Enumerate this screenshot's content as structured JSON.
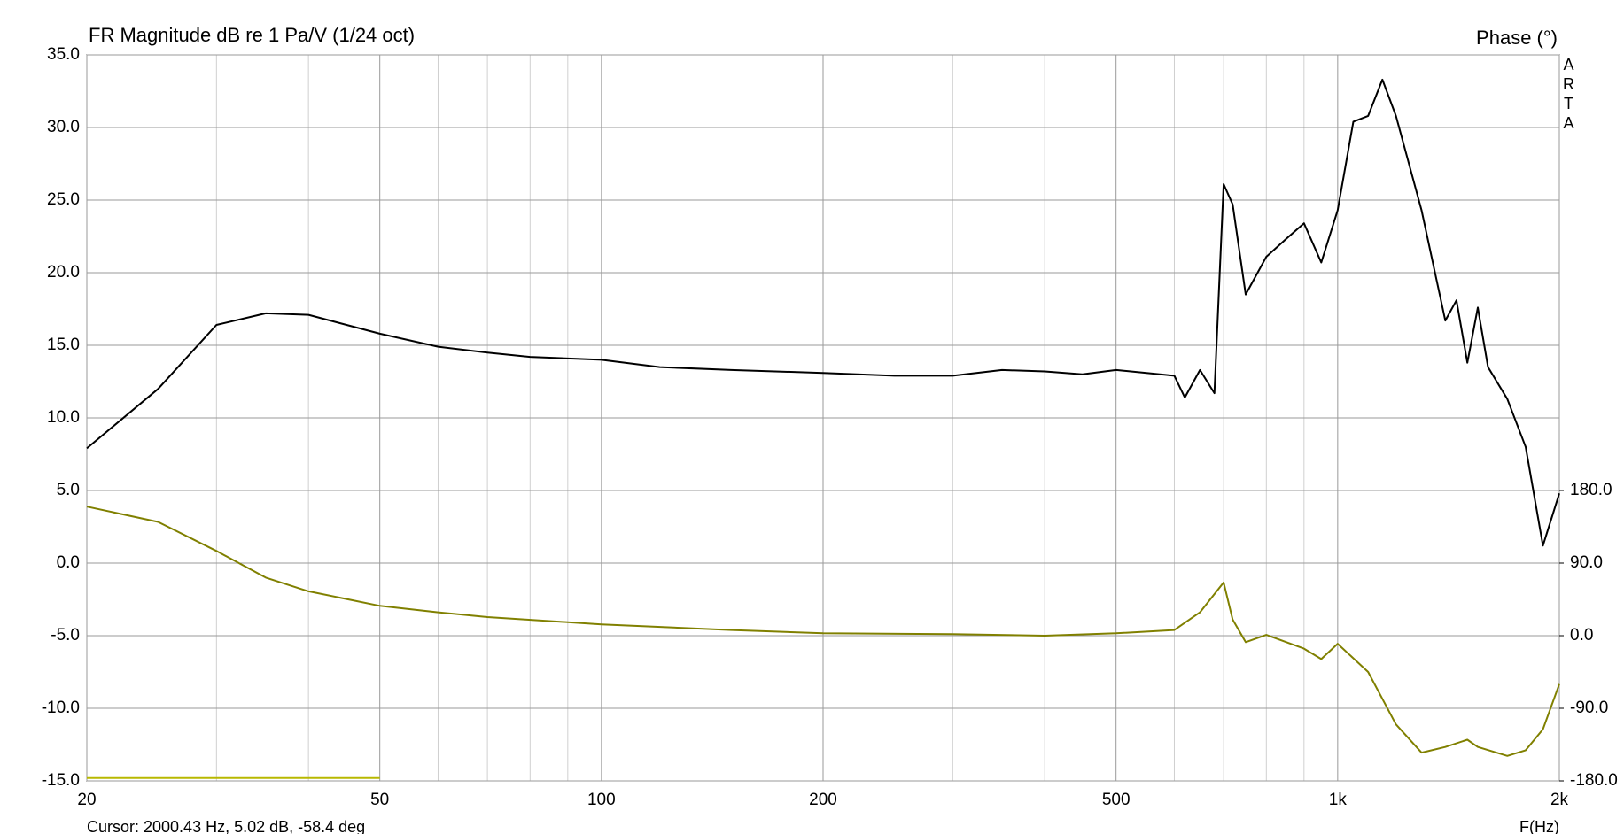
{
  "chart_data": {
    "type": "line",
    "title": "FR Magnitude dB re 1 Pa/V (1/24 oct)",
    "y2_label": "Phase (°)",
    "watermark": "ARTA",
    "x_label": "F(Hz)",
    "cursor_text": "Cursor: 2000.43 Hz, 5.02 dB, -58.4 deg",
    "log_x": true,
    "xlim": [
      20,
      2000
    ],
    "xticks": [
      20,
      50,
      100,
      200,
      500,
      {
        "value": 1000,
        "label": "1k"
      },
      {
        "value": 2000,
        "label": "2k"
      }
    ],
    "x_minor_grid": [
      30,
      40,
      60,
      70,
      80,
      90,
      300,
      400,
      600,
      700,
      800,
      900
    ],
    "ylim": [
      -15,
      35
    ],
    "yticks": [
      {
        "value": -15,
        "label": "-15.0"
      },
      {
        "value": -10,
        "label": "-10.0"
      },
      {
        "value": -5,
        "label": "-5.0"
      },
      {
        "value": 0,
        "label": "0.0"
      },
      {
        "value": 5,
        "label": "5.0"
      },
      {
        "value": 10,
        "label": "10.0"
      },
      {
        "value": 15,
        "label": "15.0"
      },
      {
        "value": 20,
        "label": "20.0"
      },
      {
        "value": 25,
        "label": "25.0"
      },
      {
        "value": 30,
        "label": "30.0"
      },
      {
        "value": 35,
        "label": "35.0"
      }
    ],
    "y2lim": [
      -180,
      720
    ],
    "y2ticks": [
      {
        "value": -180,
        "label": "-180.0"
      },
      {
        "value": -90,
        "label": "-90.0"
      },
      {
        "value": 0,
        "label": "0.0"
      },
      {
        "value": 90,
        "label": "90.0"
      },
      {
        "value": 180,
        "label": "180.0"
      }
    ],
    "grid": true,
    "series": [
      {
        "color": "#000000",
        "x": [
          20,
          25,
          30,
          35,
          40,
          50,
          60,
          70,
          80,
          100,
          120,
          150,
          200,
          250,
          300,
          350,
          400,
          450,
          500,
          550,
          600,
          620,
          650,
          680,
          700,
          720,
          750,
          800,
          850,
          900,
          950,
          1000,
          1050,
          1100,
          1150,
          1200,
          1300,
          1400,
          1450,
          1500,
          1550,
          1600,
          1700,
          1800,
          1900,
          2000
        ],
        "values": [
          7.9,
          12.0,
          16.4,
          17.2,
          17.1,
          15.8,
          14.9,
          14.5,
          14.2,
          14.0,
          13.5,
          13.3,
          13.1,
          12.9,
          12.9,
          13.3,
          13.2,
          13.0,
          13.3,
          13.1,
          12.9,
          11.4,
          13.3,
          11.7,
          26.1,
          24.7,
          18.5,
          21.1,
          22.3,
          23.4,
          20.7,
          24.3,
          30.4,
          30.8,
          33.3,
          30.8,
          24.3,
          16.7,
          18.1,
          13.8,
          17.6,
          13.5,
          11.3,
          8.0,
          1.2,
          4.8
        ]
      },
      {
        "color": "#808000",
        "axis": "y2",
        "x": [
          20,
          25,
          30,
          35,
          40,
          50,
          60,
          70,
          100,
          150,
          200,
          300,
          400,
          500,
          600,
          650,
          700,
          720,
          750,
          800,
          900,
          950,
          1000,
          1100,
          1200,
          1300,
          1400,
          1500,
          1550,
          1700,
          1800,
          1900,
          2000
        ],
        "values": [
          160,
          141,
          105,
          72,
          55,
          37,
          29,
          23,
          14,
          7,
          3,
          2,
          0,
          3,
          7,
          29,
          66,
          20,
          -8,
          1,
          -16,
          -29,
          -10,
          -45,
          -110,
          -145,
          -138,
          -129,
          -138,
          -149,
          -142,
          -116,
          -60
        ]
      }
    ],
    "marker_line": {
      "x": [
        20,
        50
      ],
      "y": -14.8,
      "color": "#b8b800"
    }
  }
}
